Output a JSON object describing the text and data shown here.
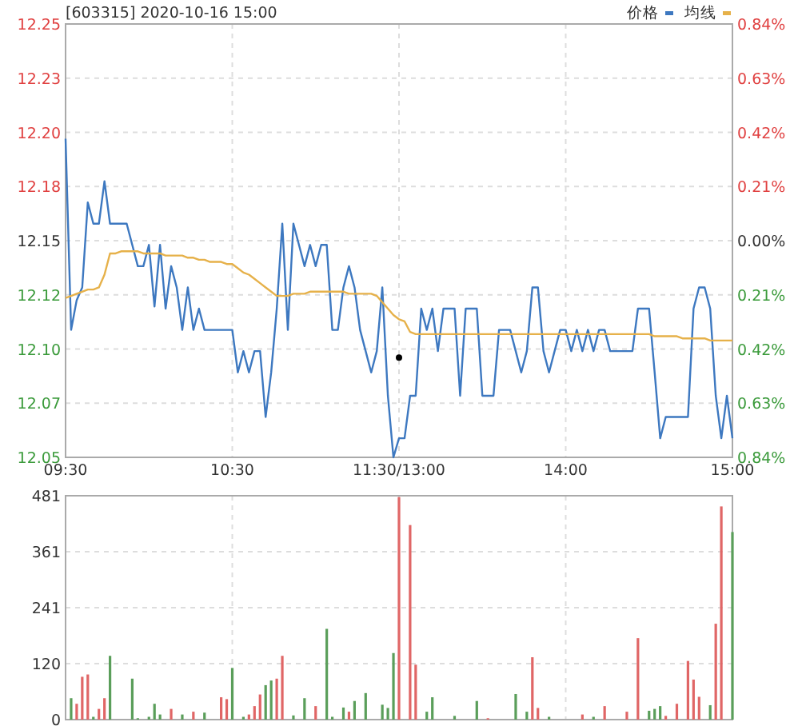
{
  "chart_data": [
    {
      "type": "line",
      "title": "[603315] 2020-10-16 15:00",
      "categories": [
        "09:30",
        null,
        null,
        null,
        null,
        null,
        null,
        null,
        null,
        null,
        null,
        null,
        null,
        null,
        null,
        null,
        null,
        null,
        null,
        null,
        null,
        null,
        null,
        null,
        null,
        null,
        null,
        null,
        null,
        null,
        "10:30",
        null,
        null,
        null,
        null,
        null,
        null,
        null,
        null,
        null,
        null,
        null,
        null,
        null,
        null,
        null,
        null,
        null,
        null,
        null,
        null,
        null,
        null,
        null,
        null,
        null,
        null,
        null,
        null,
        null,
        "11:30/13:00",
        null,
        null,
        null,
        null,
        null,
        null,
        null,
        null,
        null,
        null,
        null,
        null,
        null,
        null,
        null,
        null,
        null,
        null,
        null,
        null,
        null,
        null,
        null,
        null,
        null,
        null,
        null,
        null,
        null,
        "14:00",
        null,
        null,
        null,
        null,
        null,
        null,
        null,
        null,
        null,
        null,
        null,
        null,
        null,
        null,
        null,
        null,
        null,
        null,
        null,
        null,
        null,
        null,
        null,
        null,
        null,
        null,
        null,
        null,
        null,
        "15:00"
      ],
      "ylim": [
        12.048,
        12.252
      ],
      "yticks": [
        {
          "value": 12.048,
          "label": "12.05"
        },
        {
          "value": 12.0735,
          "label": "12.07"
        },
        {
          "value": 12.099,
          "label": "12.10"
        },
        {
          "value": 12.1245,
          "label": "12.12"
        },
        {
          "value": 12.15,
          "label": "12.15"
        },
        {
          "value": 12.1755,
          "label": "12.18"
        },
        {
          "value": 12.201,
          "label": "12.20"
        },
        {
          "value": 12.2265,
          "label": "12.23"
        },
        {
          "value": 12.252,
          "label": "12.25"
        }
      ],
      "y2lim": [
        -0.84,
        0.84
      ],
      "y2ticks": [
        {
          "value": -0.84,
          "label": "0.84%"
        },
        {
          "value": -0.63,
          "label": "0.63%"
        },
        {
          "value": -0.42,
          "label": "0.42%"
        },
        {
          "value": -0.21,
          "label": "0.21%"
        },
        {
          "value": 0,
          "label": "0.00%"
        },
        {
          "value": 0.21,
          "label": "0.21%"
        },
        {
          "value": 0.42,
          "label": "0.42%"
        },
        {
          "value": 0.63,
          "label": "0.63%"
        },
        {
          "value": 0.84,
          "label": "0.84%"
        }
      ],
      "grid": true,
      "legend": "top right",
      "series": [
        {
          "name": "价格",
          "color": "#3d78c0",
          "values": [
            12.198,
            12.108,
            12.122,
            12.128,
            12.168,
            12.158,
            12.158,
            12.178,
            12.158,
            12.158,
            12.158,
            12.158,
            12.148,
            12.138,
            12.138,
            12.148,
            12.119,
            12.148,
            12.118,
            12.138,
            12.128,
            12.108,
            12.128,
            12.108,
            12.118,
            12.108,
            12.108,
            12.108,
            12.108,
            12.108,
            12.108,
            12.088,
            12.098,
            12.088,
            12.098,
            12.098,
            12.067,
            12.088,
            12.118,
            12.158,
            12.108,
            12.158,
            12.148,
            12.138,
            12.148,
            12.138,
            12.148,
            12.148,
            12.108,
            12.108,
            12.128,
            12.138,
            12.128,
            12.108,
            12.098,
            12.088,
            12.098,
            12.128,
            12.077,
            12.048,
            12.057,
            12.057,
            12.077,
            12.077,
            12.118,
            12.108,
            12.118,
            12.098,
            12.118,
            12.118,
            12.118,
            12.077,
            12.118,
            12.118,
            12.118,
            12.077,
            12.077,
            12.077,
            12.108,
            12.108,
            12.108,
            12.098,
            12.088,
            12.098,
            12.128,
            12.128,
            12.098,
            12.088,
            12.098,
            12.108,
            12.108,
            12.098,
            12.108,
            12.098,
            12.108,
            12.098,
            12.108,
            12.108,
            12.098,
            12.098,
            12.098,
            12.098,
            12.098,
            12.118,
            12.118,
            12.118,
            12.088,
            12.057,
            12.067,
            12.067,
            12.067,
            12.067,
            12.067,
            12.118,
            12.128,
            12.128,
            12.118,
            12.077,
            12.057,
            12.077,
            12.057
          ]
        },
        {
          "name": "均线",
          "color": "#e6b14a",
          "values": [
            12.123,
            12.124,
            12.125,
            12.126,
            12.127,
            12.127,
            12.128,
            12.134,
            12.144,
            12.144,
            12.145,
            12.145,
            12.145,
            12.145,
            12.144,
            12.144,
            12.144,
            12.144,
            12.143,
            12.143,
            12.143,
            12.143,
            12.142,
            12.142,
            12.141,
            12.141,
            12.14,
            12.14,
            12.14,
            12.139,
            12.139,
            12.137,
            12.135,
            12.134,
            12.132,
            12.13,
            12.128,
            12.126,
            12.124,
            12.124,
            12.124,
            12.125,
            12.125,
            12.125,
            12.126,
            12.126,
            12.126,
            12.126,
            12.126,
            12.126,
            12.126,
            12.125,
            12.125,
            12.125,
            12.125,
            12.125,
            12.124,
            12.121,
            12.118,
            12.115,
            12.113,
            12.112,
            12.107,
            12.106,
            12.106,
            12.106,
            12.106,
            12.106,
            12.106,
            12.106,
            12.106,
            12.106,
            12.106,
            12.106,
            12.106,
            12.106,
            12.106,
            12.106,
            12.106,
            12.106,
            12.106,
            12.106,
            12.106,
            12.106,
            12.106,
            12.106,
            12.106,
            12.106,
            12.106,
            12.106,
            12.106,
            12.106,
            12.106,
            12.106,
            12.106,
            12.106,
            12.106,
            12.106,
            12.106,
            12.106,
            12.106,
            12.106,
            12.106,
            12.106,
            12.106,
            12.106,
            12.105,
            12.105,
            12.105,
            12.105,
            12.105,
            12.104,
            12.104,
            12.104,
            12.104,
            12.104,
            12.103,
            12.103,
            12.103,
            12.103,
            12.103
          ]
        },
        {
          "type": "scatter",
          "color": "#000000",
          "marker": "circle",
          "values": [
            null,
            null,
            null,
            null,
            null,
            null,
            null,
            null,
            null,
            null,
            null,
            null,
            null,
            null,
            null,
            null,
            null,
            null,
            null,
            null,
            null,
            null,
            null,
            null,
            null,
            null,
            null,
            null,
            null,
            null,
            null,
            null,
            null,
            null,
            null,
            null,
            null,
            null,
            null,
            null,
            null,
            null,
            null,
            null,
            null,
            null,
            null,
            null,
            null,
            null,
            null,
            null,
            null,
            null,
            null,
            null,
            null,
            null,
            null,
            null,
            12.095,
            null,
            null,
            null,
            null,
            null,
            null,
            null,
            null,
            null,
            null,
            null,
            null,
            null,
            null,
            null,
            null,
            null,
            null,
            null,
            null,
            null,
            null,
            null,
            null,
            null,
            null,
            null,
            null,
            null,
            null,
            null,
            null,
            null,
            null,
            null,
            null,
            null,
            null,
            null,
            null,
            null,
            null,
            null,
            null,
            null,
            null,
            null,
            null,
            null,
            null,
            null,
            null,
            null,
            null,
            null,
            null,
            null,
            null,
            null,
            null
          ]
        }
      ]
    },
    {
      "type": "bar",
      "tick_labels": "y",
      "categories": [
        null,
        null,
        null,
        null,
        null,
        null,
        null,
        null,
        null,
        null,
        null,
        null,
        null,
        null,
        null,
        null,
        null,
        null,
        null,
        null,
        null,
        null,
        null,
        null,
        null,
        null,
        null,
        null,
        null,
        null,
        null,
        null,
        null,
        null,
        null,
        null,
        null,
        null,
        null,
        null,
        null,
        null,
        null,
        null,
        null,
        null,
        null,
        null,
        null,
        null,
        null,
        null,
        null,
        null,
        null,
        null,
        null,
        null,
        null,
        null,
        null,
        null,
        null,
        null,
        null,
        null,
        null,
        null,
        null,
        null,
        null,
        null,
        null,
        null,
        null,
        null,
        null,
        null,
        null,
        null,
        null,
        null,
        null,
        null,
        null,
        null,
        null,
        null,
        null,
        null,
        null,
        null,
        null,
        null,
        null,
        null,
        null,
        null,
        null,
        null,
        null,
        null,
        null,
        null,
        null,
        null,
        null,
        null,
        null,
        null,
        null,
        null,
        null,
        null,
        null,
        null,
        null,
        null,
        null,
        null,
        null
      ],
      "ylim": [
        0,
        481
      ],
      "yticks": [
        0,
        {
          "value": 120.25,
          "label": "120"
        },
        {
          "value": 240.5,
          "label": "241"
        },
        {
          "value": 360.75,
          "label": "361"
        },
        481
      ],
      "grid": true,
      "values": [
        0,
        46,
        34,
        92,
        97,
        6,
        23,
        46,
        137,
        0,
        0,
        0,
        88,
        3,
        0,
        6,
        34,
        11,
        0,
        23,
        0,
        11,
        0,
        17,
        0,
        15,
        0,
        0,
        48,
        44,
        111,
        0,
        6,
        11,
        29,
        54,
        74,
        84,
        88,
        137,
        0,
        9,
        0,
        46,
        0,
        29,
        0,
        195,
        6,
        0,
        26,
        17,
        40,
        0,
        57,
        0,
        0,
        32,
        25,
        143,
        478,
        0,
        418,
        118,
        0,
        17,
        48,
        0,
        0,
        0,
        8,
        0,
        0,
        0,
        40,
        0,
        3,
        0,
        0,
        0,
        0,
        55,
        0,
        17,
        134,
        25,
        0,
        6,
        0,
        0,
        0,
        0,
        0,
        11,
        0,
        6,
        0,
        29,
        0,
        0,
        0,
        17,
        0,
        175,
        0,
        19,
        23,
        29,
        8,
        0,
        34,
        0,
        126,
        86,
        49,
        0,
        31,
        206,
        458,
        0,
        403
      ],
      "colors": [
        "#5a9e5a",
        "#5a9e5a",
        "#e06666",
        "#e06666",
        "#e06666",
        "#5a9e5a",
        "#e06666",
        "#e06666",
        "#5a9e5a",
        "#5a9e5a",
        "#5a9e5a",
        "#5a9e5a",
        "#5a9e5a",
        "#5a9e5a",
        "#5a9e5a",
        "#5a9e5a",
        "#5a9e5a",
        "#5a9e5a",
        "#5a9e5a",
        "#e06666",
        "#5a9e5a",
        "#5a9e5a",
        "#5a9e5a",
        "#e06666",
        "#5a9e5a",
        "#5a9e5a",
        "#5a9e5a",
        "#5a9e5a",
        "#e06666",
        "#e06666",
        "#5a9e5a",
        "#5a9e5a",
        "#5a9e5a",
        "#e06666",
        "#e06666",
        "#e06666",
        "#5a9e5a",
        "#5a9e5a",
        "#e06666",
        "#e06666",
        "#5a9e5a",
        "#5a9e5a",
        "#5a9e5a",
        "#5a9e5a",
        "#5a9e5a",
        "#e06666",
        "#5a9e5a",
        "#5a9e5a",
        "#5a9e5a",
        "#5a9e5a",
        "#5a9e5a",
        "#e06666",
        "#5a9e5a",
        "#5a9e5a",
        "#5a9e5a",
        "#5a9e5a",
        "#5a9e5a",
        "#5a9e5a",
        "#5a9e5a",
        "#5a9e5a",
        "#e06666",
        "#5a9e5a",
        "#e06666",
        "#e06666",
        "#5a9e5a",
        "#5a9e5a",
        "#5a9e5a",
        "#5a9e5a",
        "#5a9e5a",
        "#5a9e5a",
        "#5a9e5a",
        "#5a9e5a",
        "#5a9e5a",
        "#5a9e5a",
        "#5a9e5a",
        "#5a9e5a",
        "#e06666",
        "#5a9e5a",
        "#5a9e5a",
        "#5a9e5a",
        "#5a9e5a",
        "#5a9e5a",
        "#5a9e5a",
        "#5a9e5a",
        "#e06666",
        "#e06666",
        "#5a9e5a",
        "#5a9e5a",
        "#5a9e5a",
        "#5a9e5a",
        "#5a9e5a",
        "#5a9e5a",
        "#5a9e5a",
        "#e06666",
        "#5a9e5a",
        "#5a9e5a",
        "#5a9e5a",
        "#e06666",
        "#5a9e5a",
        "#5a9e5a",
        "#5a9e5a",
        "#e06666",
        "#5a9e5a",
        "#e06666",
        "#5a9e5a",
        "#5a9e5a",
        "#5a9e5a",
        "#5a9e5a",
        "#e06666",
        "#5a9e5a",
        "#e06666",
        "#5a9e5a",
        "#e06666",
        "#e06666",
        "#e06666",
        "#5a9e5a",
        "#5a9e5a",
        "#e06666",
        "#e06666",
        "#5a9e5a",
        "#5a9e5a"
      ]
    }
  ]
}
